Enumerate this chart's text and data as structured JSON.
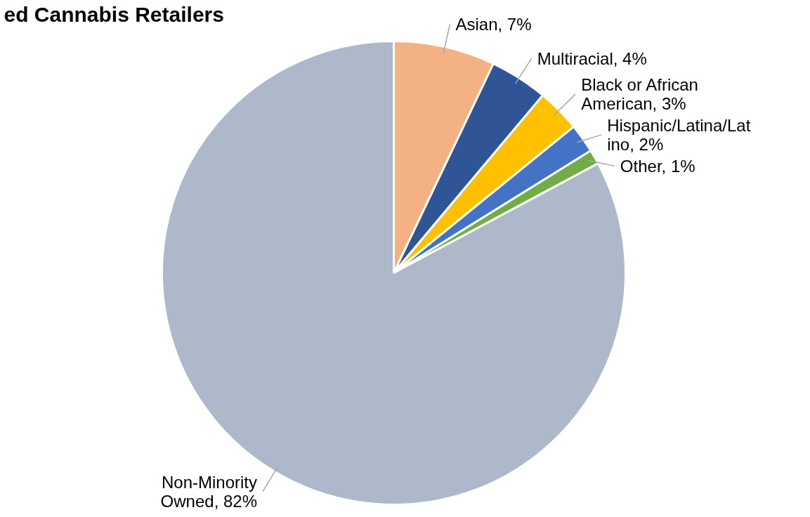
{
  "chart_data": {
    "type": "pie",
    "title": "ed Cannabis Retailers",
    "categories": [
      "Asian",
      "Multiracial",
      "Black or African American",
      "Hispanic/Latina/Latino",
      "Other",
      "Non-Minority Owned"
    ],
    "values": [
      7,
      4,
      3,
      2,
      1,
      82
    ],
    "colors": [
      "#f4b183",
      "#2f5597",
      "#ffc000",
      "#4472c4",
      "#70ad47",
      "#adb9ca"
    ],
    "value_labels": [
      "7%",
      "4%",
      "3%",
      "2%",
      "1%",
      "82%"
    ]
  }
}
